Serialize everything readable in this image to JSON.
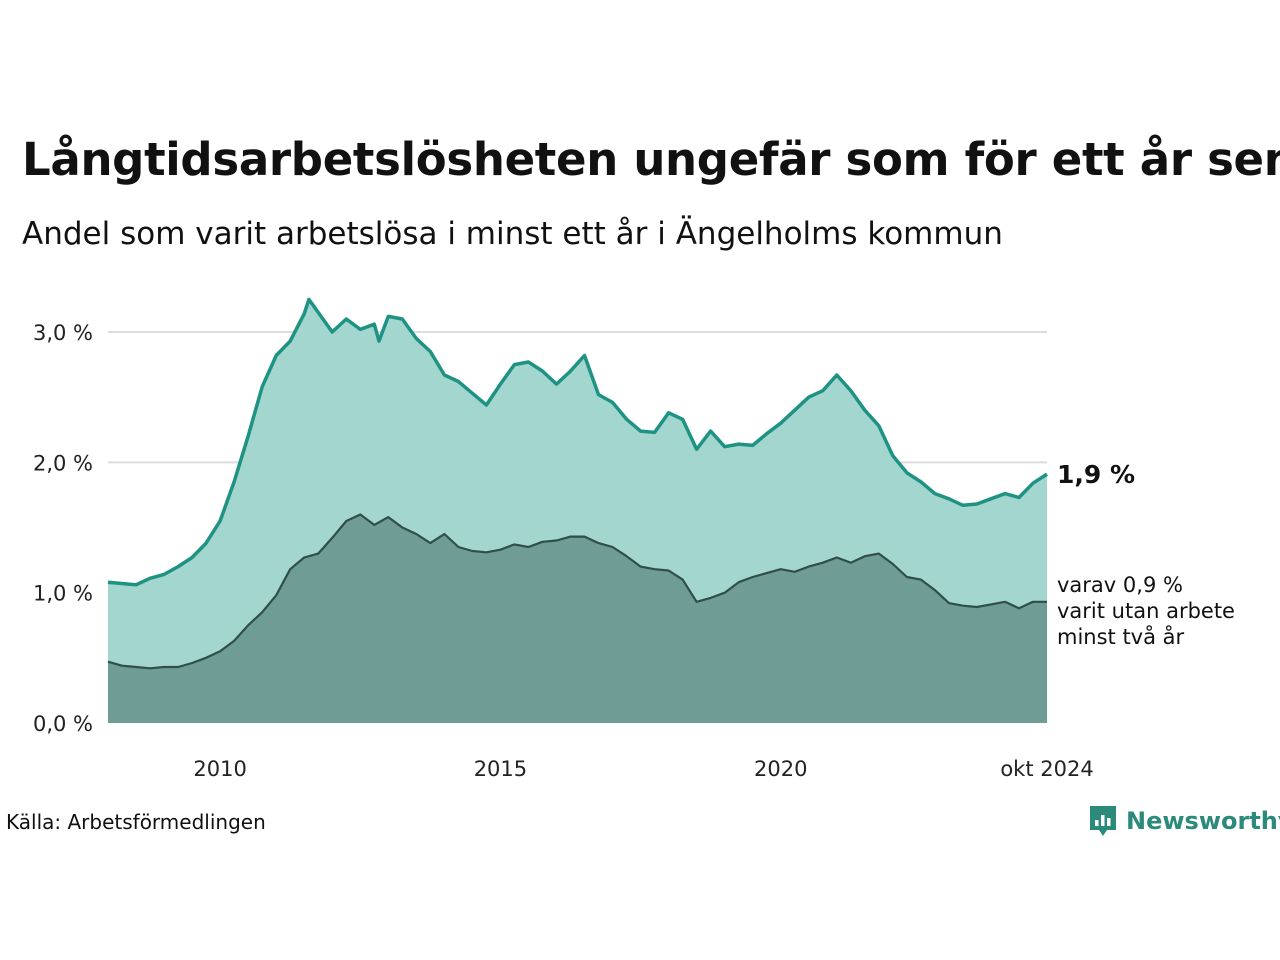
{
  "chart_data": {
    "type": "area",
    "title": "Långtidsarbetslösheten ungefär som för ett år sen",
    "subtitle": "Andel som varit arbetslösa i minst ett år i Ängelholms kommun",
    "x_start": "2008-01",
    "x_end": "2024-10",
    "x_ticks": [
      {
        "label": "2010",
        "x": "2010-01"
      },
      {
        "label": "2015",
        "x": "2015-01"
      },
      {
        "label": "2020",
        "x": "2020-01"
      },
      {
        "label": "okt 2024",
        "x": "2024-10"
      }
    ],
    "y_ticks": [
      "0,0 %",
      "1,0 %",
      "2,0 %",
      "3,0 %"
    ],
    "y_tick_values": [
      0,
      1,
      2,
      3
    ],
    "ylim": [
      0,
      3.3
    ],
    "grid": true,
    "series": [
      {
        "end_label": "1,9 %",
        "color": "#1f9383",
        "fill": "#a3d6cf",
        "points": [
          [
            "2008-01",
            1.08
          ],
          [
            "2008-04",
            1.07
          ],
          [
            "2008-07",
            1.06
          ],
          [
            "2008-10",
            1.11
          ],
          [
            "2009-01",
            1.14
          ],
          [
            "2009-04",
            1.2
          ],
          [
            "2009-07",
            1.27
          ],
          [
            "2009-10",
            1.38
          ],
          [
            "2010-01",
            1.55
          ],
          [
            "2010-04",
            1.85
          ],
          [
            "2010-07",
            2.2
          ],
          [
            "2010-10",
            2.58
          ],
          [
            "2011-01",
            2.82
          ],
          [
            "2011-04",
            2.93
          ],
          [
            "2011-07",
            3.14
          ],
          [
            "2011-08",
            3.25
          ],
          [
            "2011-10",
            3.15
          ],
          [
            "2012-01",
            3.0
          ],
          [
            "2012-04",
            3.1
          ],
          [
            "2012-07",
            3.02
          ],
          [
            "2012-10",
            3.06
          ],
          [
            "2012-11",
            2.93
          ],
          [
            "2013-01",
            3.12
          ],
          [
            "2013-04",
            3.1
          ],
          [
            "2013-07",
            2.95
          ],
          [
            "2013-10",
            2.85
          ],
          [
            "2014-01",
            2.67
          ],
          [
            "2014-04",
            2.62
          ],
          [
            "2014-07",
            2.53
          ],
          [
            "2014-10",
            2.44
          ],
          [
            "2015-01",
            2.6
          ],
          [
            "2015-04",
            2.75
          ],
          [
            "2015-07",
            2.77
          ],
          [
            "2015-10",
            2.7
          ],
          [
            "2016-01",
            2.6
          ],
          [
            "2016-04",
            2.7
          ],
          [
            "2016-07",
            2.82
          ],
          [
            "2016-10",
            2.52
          ],
          [
            "2017-01",
            2.46
          ],
          [
            "2017-04",
            2.33
          ],
          [
            "2017-07",
            2.24
          ],
          [
            "2017-10",
            2.23
          ],
          [
            "2018-01",
            2.38
          ],
          [
            "2018-04",
            2.33
          ],
          [
            "2018-07",
            2.1
          ],
          [
            "2018-10",
            2.24
          ],
          [
            "2019-01",
            2.12
          ],
          [
            "2019-04",
            2.14
          ],
          [
            "2019-07",
            2.13
          ],
          [
            "2019-10",
            2.22
          ],
          [
            "2020-01",
            2.3
          ],
          [
            "2020-04",
            2.4
          ],
          [
            "2020-07",
            2.5
          ],
          [
            "2020-10",
            2.55
          ],
          [
            "2021-01",
            2.67
          ],
          [
            "2021-04",
            2.55
          ],
          [
            "2021-07",
            2.4
          ],
          [
            "2021-10",
            2.28
          ],
          [
            "2022-01",
            2.05
          ],
          [
            "2022-04",
            1.92
          ],
          [
            "2022-07",
            1.85
          ],
          [
            "2022-10",
            1.76
          ],
          [
            "2023-01",
            1.72
          ],
          [
            "2023-04",
            1.67
          ],
          [
            "2023-07",
            1.68
          ],
          [
            "2023-10",
            1.72
          ],
          [
            "2024-01",
            1.76
          ],
          [
            "2024-04",
            1.73
          ],
          [
            "2024-07",
            1.84
          ],
          [
            "2024-10",
            1.91
          ]
        ]
      },
      {
        "end_label": "varav 0,9 %",
        "end_label_lines": [
          "varav 0,9 %",
          "varit utan arbete",
          "minst två år"
        ],
        "color": "#2f4f48",
        "fill": "#6f9c95",
        "points": [
          [
            "2008-01",
            0.47
          ],
          [
            "2008-04",
            0.44
          ],
          [
            "2008-07",
            0.43
          ],
          [
            "2008-10",
            0.42
          ],
          [
            "2009-01",
            0.43
          ],
          [
            "2009-04",
            0.43
          ],
          [
            "2009-07",
            0.46
          ],
          [
            "2009-10",
            0.5
          ],
          [
            "2010-01",
            0.55
          ],
          [
            "2010-04",
            0.63
          ],
          [
            "2010-07",
            0.75
          ],
          [
            "2010-10",
            0.85
          ],
          [
            "2011-01",
            0.98
          ],
          [
            "2011-04",
            1.18
          ],
          [
            "2011-07",
            1.27
          ],
          [
            "2011-10",
            1.3
          ],
          [
            "2012-01",
            1.42
          ],
          [
            "2012-04",
            1.55
          ],
          [
            "2012-07",
            1.6
          ],
          [
            "2012-10",
            1.52
          ],
          [
            "2013-01",
            1.58
          ],
          [
            "2013-04",
            1.5
          ],
          [
            "2013-07",
            1.45
          ],
          [
            "2013-10",
            1.38
          ],
          [
            "2014-01",
            1.45
          ],
          [
            "2014-04",
            1.35
          ],
          [
            "2014-07",
            1.32
          ],
          [
            "2014-10",
            1.31
          ],
          [
            "2015-01",
            1.33
          ],
          [
            "2015-04",
            1.37
          ],
          [
            "2015-07",
            1.35
          ],
          [
            "2015-10",
            1.39
          ],
          [
            "2016-01",
            1.4
          ],
          [
            "2016-04",
            1.43
          ],
          [
            "2016-07",
            1.43
          ],
          [
            "2016-10",
            1.38
          ],
          [
            "2017-01",
            1.35
          ],
          [
            "2017-04",
            1.28
          ],
          [
            "2017-07",
            1.2
          ],
          [
            "2017-10",
            1.18
          ],
          [
            "2018-01",
            1.17
          ],
          [
            "2018-04",
            1.1
          ],
          [
            "2018-07",
            0.93
          ],
          [
            "2018-10",
            0.96
          ],
          [
            "2019-01",
            1.0
          ],
          [
            "2019-04",
            1.08
          ],
          [
            "2019-07",
            1.12
          ],
          [
            "2019-10",
            1.15
          ],
          [
            "2020-01",
            1.18
          ],
          [
            "2020-04",
            1.16
          ],
          [
            "2020-07",
            1.2
          ],
          [
            "2020-10",
            1.23
          ],
          [
            "2021-01",
            1.27
          ],
          [
            "2021-04",
            1.23
          ],
          [
            "2021-07",
            1.28
          ],
          [
            "2021-10",
            1.3
          ],
          [
            "2022-01",
            1.22
          ],
          [
            "2022-04",
            1.12
          ],
          [
            "2022-07",
            1.1
          ],
          [
            "2022-10",
            1.02
          ],
          [
            "2023-01",
            0.92
          ],
          [
            "2023-04",
            0.9
          ],
          [
            "2023-07",
            0.89
          ],
          [
            "2023-10",
            0.91
          ],
          [
            "2024-01",
            0.93
          ],
          [
            "2024-04",
            0.88
          ],
          [
            "2024-07",
            0.93
          ],
          [
            "2024-10",
            0.93
          ]
        ]
      }
    ]
  },
  "footer": {
    "source": "Källa: Arbetsförmedlingen",
    "brand": "Newsworthy",
    "brand_icon": "bar-chart-speech-bubble-icon"
  }
}
